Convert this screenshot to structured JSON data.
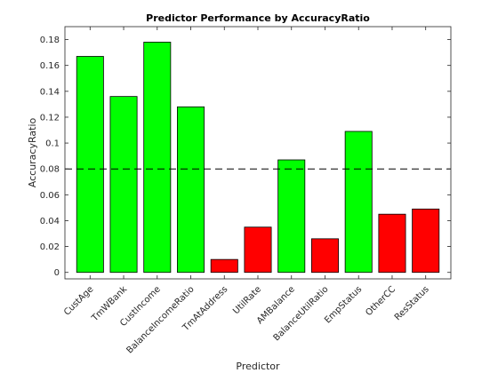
{
  "chart_data": {
    "type": "bar",
    "title": "Predictor Performance by AccuracyRatio",
    "xlabel": "Predictor",
    "ylabel": "AccuracyRatio",
    "categories": [
      "CustAge",
      "TmWBank",
      "CustIncome",
      "BalanceIncomeRatio",
      "TmAtAddress",
      "UtilRate",
      "AMBalance",
      "BalanceUtilRatio",
      "EmpStatus",
      "OtherCC",
      "ResStatus"
    ],
    "values": [
      0.167,
      0.136,
      0.178,
      0.128,
      0.01,
      0.035,
      0.087,
      0.026,
      0.109,
      0.045,
      0.049
    ],
    "bar_colors": [
      "#00ff00",
      "#00ff00",
      "#00ff00",
      "#00ff00",
      "#ff0000",
      "#ff0000",
      "#00ff00",
      "#ff0000",
      "#00ff00",
      "#ff0000",
      "#ff0000"
    ],
    "threshold": 0.08,
    "ylim": [
      -0.005,
      0.19
    ],
    "yticks": [
      0,
      0.02,
      0.04,
      0.06,
      0.08,
      0.1,
      0.12,
      0.14,
      0.16,
      0.18
    ],
    "ytick_labels": [
      "0",
      "0.02",
      "0.04",
      "0.06",
      "0.08",
      "0.1",
      "0.12",
      "0.14",
      "0.16",
      "0.18"
    ],
    "grid": false,
    "legend": "none"
  }
}
